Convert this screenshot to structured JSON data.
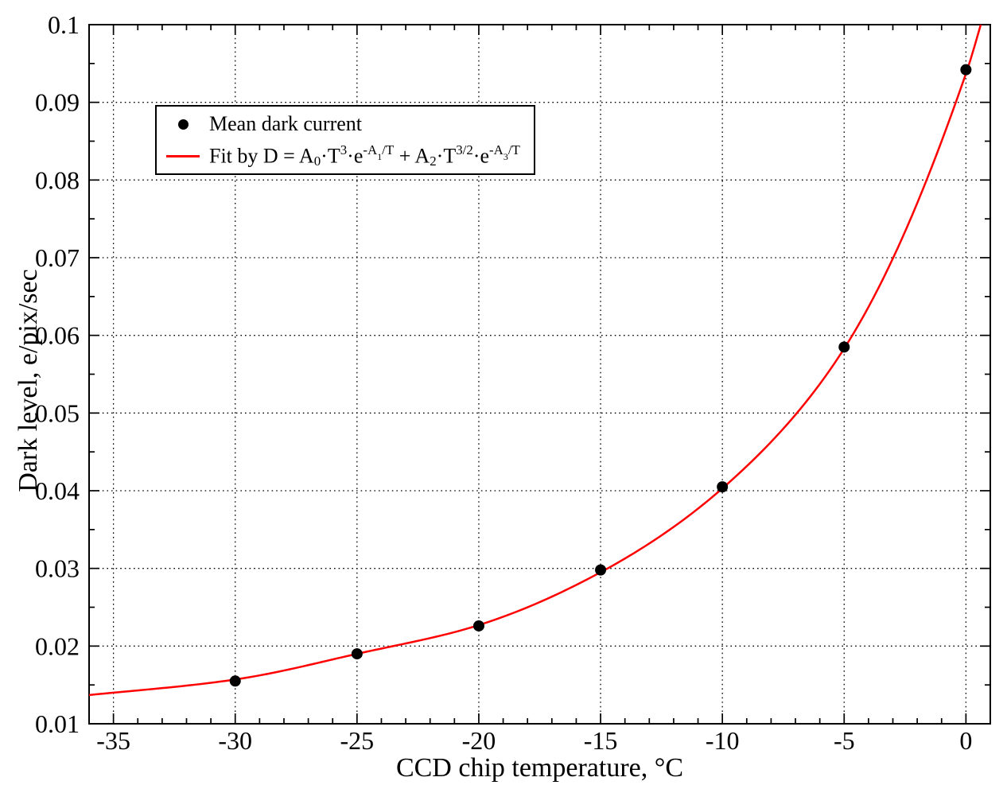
{
  "figure": {
    "background": "#ffffff",
    "text_color": "#000000"
  },
  "chart_data": {
    "type": "scatter",
    "title": "",
    "xlabel": "CCD chip temperature, °C",
    "ylabel": "Dark level, e/pix/sec",
    "xlim": [
      -36,
      1
    ],
    "ylim": [
      0.01,
      0.1
    ],
    "x_major_ticks": [
      -35,
      -30,
      -25,
      -20,
      -15,
      -10,
      -5,
      0
    ],
    "x_tick_labels": [
      "-35",
      "-30",
      "-25",
      "-20",
      "-15",
      "-10",
      "-5",
      "0"
    ],
    "x_minor_tick_step": 1,
    "y_major_ticks": [
      0.01,
      0.02,
      0.03,
      0.04,
      0.05,
      0.06,
      0.07,
      0.08,
      0.09,
      0.1
    ],
    "y_tick_labels": [
      "0.01",
      "0.02",
      "0.03",
      "0.04",
      "0.05",
      "0.06",
      "0.07",
      "0.08",
      "0.09",
      "0.1"
    ],
    "y_minor_tick_step": 0.005,
    "grid": {
      "show": true,
      "style": "dotted",
      "at": "major-ticks",
      "color": "#000000"
    },
    "legend_position": "upper-left",
    "series": [
      {
        "name": "Mean dark current",
        "type": "scatter",
        "marker": "filled-circle",
        "color": "#000000",
        "x": [
          -30,
          -25,
          -20,
          -15,
          -10,
          -5,
          0
        ],
        "y": [
          0.0155,
          0.019,
          0.0226,
          0.0298,
          0.0405,
          0.0585,
          0.0942
        ]
      },
      {
        "name": "Fit by D = A_0·T^3·e^(-A_1/T) + A_2·T^(3/2)·e^(-A_3/T)",
        "type": "line",
        "color": "#ff0000",
        "x": [
          -36,
          -30,
          -25,
          -20,
          -15,
          -10,
          -5,
          0,
          0.7
        ],
        "y": [
          0.0137,
          0.0157,
          0.019,
          0.0227,
          0.0295,
          0.0403,
          0.0583,
          0.0937,
          0.101
        ]
      }
    ]
  },
  "legend": {
    "entries": [
      {
        "marker": "dot",
        "marker_color": "#000000",
        "label": "Mean dark current"
      },
      {
        "marker": "line",
        "marker_color": "#ff0000",
        "label_plain": "Fit by D = A_0·T^3·e^(-A_1/T) + A_2·T^(3/2)·e^(-A_3/T)",
        "label_segments": [
          {
            "text": "Fit by D = A",
            "style": "n"
          },
          {
            "text": "0",
            "style": "sub"
          },
          {
            "text": "·T",
            "style": "n"
          },
          {
            "text": "3",
            "style": "sup"
          },
          {
            "text": "·e",
            "style": "n"
          },
          {
            "text": "-A",
            "style": "sup"
          },
          {
            "text": "1",
            "style": "supsub"
          },
          {
            "text": "/T",
            "style": "sup"
          },
          {
            "text": " + A",
            "style": "n"
          },
          {
            "text": "2",
            "style": "sub"
          },
          {
            "text": "·T",
            "style": "n"
          },
          {
            "text": "3/2",
            "style": "sup"
          },
          {
            "text": "·e",
            "style": "n"
          },
          {
            "text": "-A",
            "style": "sup"
          },
          {
            "text": "3",
            "style": "supsub"
          },
          {
            "text": "/T",
            "style": "sup"
          }
        ]
      }
    ]
  }
}
